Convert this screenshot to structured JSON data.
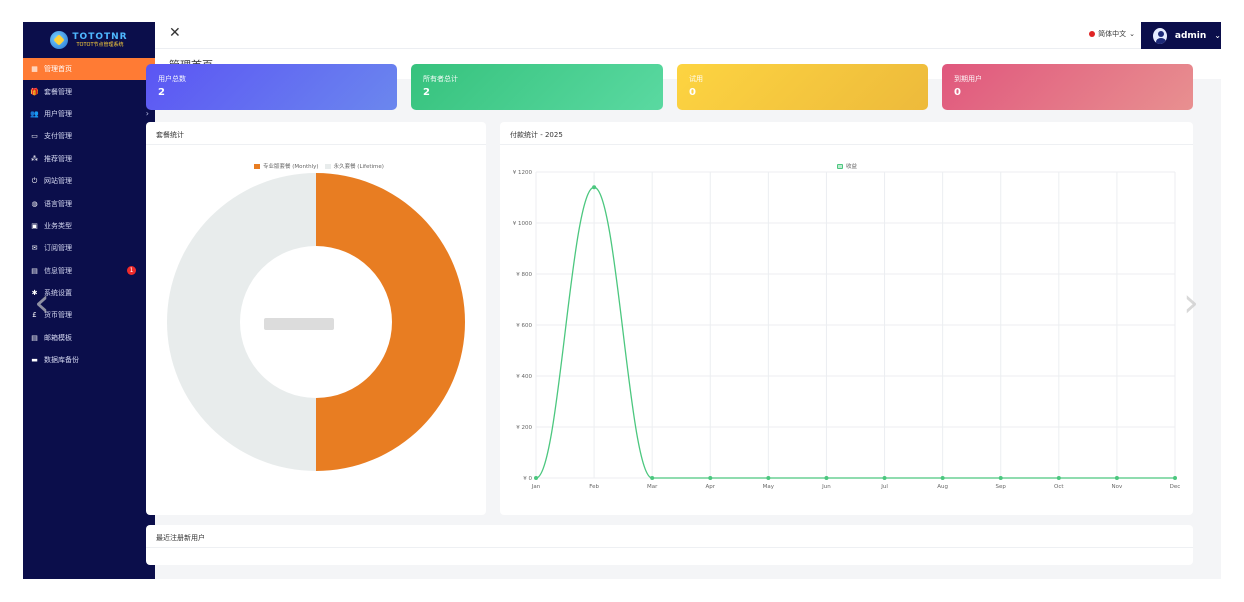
{
  "logo": {
    "line1": "TOTOTNR",
    "line2": "TOTOT节点管理系统"
  },
  "sidebar": {
    "items": [
      {
        "label": "管理首页",
        "icon": "dashboard-icon",
        "glyph": "▦",
        "chevron": false,
        "active": true
      },
      {
        "label": "套餐管理",
        "icon": "gift-icon",
        "glyph": "🎁",
        "chevron": true
      },
      {
        "label": "用户管理",
        "icon": "users-icon",
        "glyph": "👥",
        "chevron": true
      },
      {
        "label": "支付管理",
        "icon": "credit-card-icon",
        "glyph": "▭",
        "chevron": true
      },
      {
        "label": "推荐管理",
        "icon": "sitemap-icon",
        "glyph": "⁂",
        "chevron": true
      },
      {
        "label": "网站管理",
        "icon": "power-icon",
        "glyph": "⏻",
        "chevron": true
      },
      {
        "label": "语言管理",
        "icon": "globe-icon",
        "glyph": "◍",
        "chevron": true
      },
      {
        "label": "业务类型",
        "icon": "briefcase-icon",
        "glyph": "▣",
        "chevron": false
      },
      {
        "label": "订阅管理",
        "icon": "mail-icon",
        "glyph": "✉",
        "chevron": false
      },
      {
        "label": "信息管理",
        "icon": "inbox-icon",
        "glyph": "▤",
        "chevron": false,
        "badge": "1"
      },
      {
        "label": "系统设置",
        "icon": "gear-icon",
        "glyph": "✱",
        "chevron": false
      },
      {
        "label": "货币管理",
        "icon": "pound-icon",
        "glyph": "£",
        "chevron": false
      },
      {
        "label": "邮箱模板",
        "icon": "envelope-icon",
        "glyph": "▤",
        "chevron": false
      },
      {
        "label": "数据库备份",
        "icon": "database-icon",
        "glyph": "▬",
        "chevron": false
      }
    ]
  },
  "topbar": {
    "close_glyph": "✕",
    "language": "简体中文",
    "lang_chev": "⌄",
    "username": "admin",
    "user_chev": "⌄"
  },
  "page": {
    "title": "管理首页"
  },
  "stats": [
    {
      "label": "用户总数",
      "value": "2",
      "color": "#5b55f4"
    },
    {
      "label": "所有者总计",
      "value": "2",
      "color": "#36c27d"
    },
    {
      "label": "试用",
      "value": "0",
      "color": "#fdd441"
    },
    {
      "label": "到期用户",
      "value": "0",
      "color": "#e0577d"
    }
  ],
  "panels": {
    "pie_title": "套餐统计",
    "line_title": "付款统计 - 2025",
    "users_title": "最近注册新用户"
  },
  "chart_data": [
    {
      "type": "pie",
      "title": "套餐统计",
      "donut": true,
      "labels": [
        "专业版套餐 (Monthly)",
        "永久套餐 (Lifetime)"
      ],
      "values": [
        1,
        1
      ],
      "colors": [
        "#e87d22",
        "#e8ecec"
      ],
      "legend": "top"
    },
    {
      "type": "line",
      "title": "付款统计 - 2025",
      "categories": [
        "Jan",
        "Feb",
        "Mar",
        "Apr",
        "May",
        "Jun",
        "Jul",
        "Aug",
        "Sep",
        "Oct",
        "Nov",
        "Dec"
      ],
      "series": [
        {
          "name": "收益",
          "values": [
            0,
            1140,
            0,
            0,
            0,
            0,
            0,
            0,
            0,
            0,
            0,
            0
          ],
          "color": "#4cc77f"
        }
      ],
      "yticks": [
        "¥ 0",
        "¥ 200",
        "¥ 400",
        "¥ 600",
        "¥ 800",
        "¥ 1000",
        "¥ 1200"
      ],
      "ylim": [
        0,
        1200
      ],
      "grid": true,
      "legend": "top"
    }
  ]
}
